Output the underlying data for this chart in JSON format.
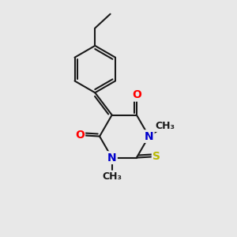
{
  "background_color": "#e8e8e8",
  "bond_color": "#1a1a1a",
  "bond_width": 1.5,
  "atom_colors": {
    "O": "#ff0000",
    "N": "#0000cc",
    "S": "#b8b800",
    "C": "#1a1a1a"
  },
  "font_size_atom": 10,
  "font_size_methyl": 9,
  "xlim": [
    0,
    10
  ],
  "ylim": [
    0,
    10
  ]
}
